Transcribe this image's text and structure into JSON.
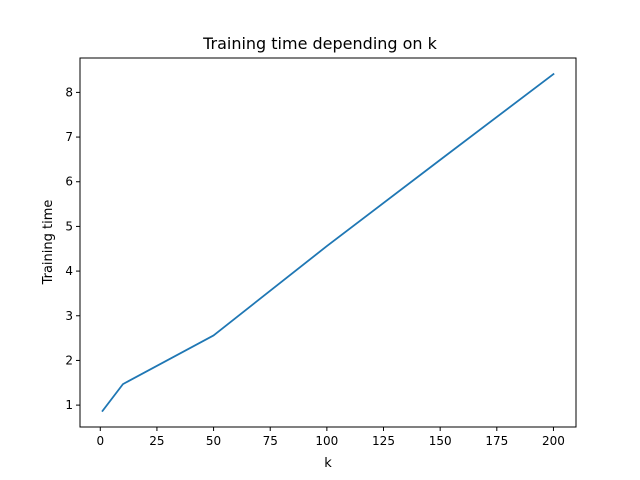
{
  "chart_data": {
    "type": "line",
    "title": "Training time depending on k",
    "xlabel": "k",
    "ylabel": "Training time",
    "xlim": [
      -8.95,
      209.95
    ],
    "ylim": [
      0.51,
      8.77
    ],
    "xticks": [
      0,
      25,
      50,
      75,
      100,
      125,
      150,
      175,
      200
    ],
    "yticks": [
      1,
      2,
      3,
      4,
      5,
      6,
      7,
      8
    ],
    "grid": false,
    "series": [
      {
        "color": "#1f77b4",
        "x": [
          1,
          10,
          50,
          100,
          150,
          200
        ],
        "y": [
          0.87,
          1.47,
          2.56,
          4.56,
          6.49,
          8.41
        ]
      }
    ]
  }
}
